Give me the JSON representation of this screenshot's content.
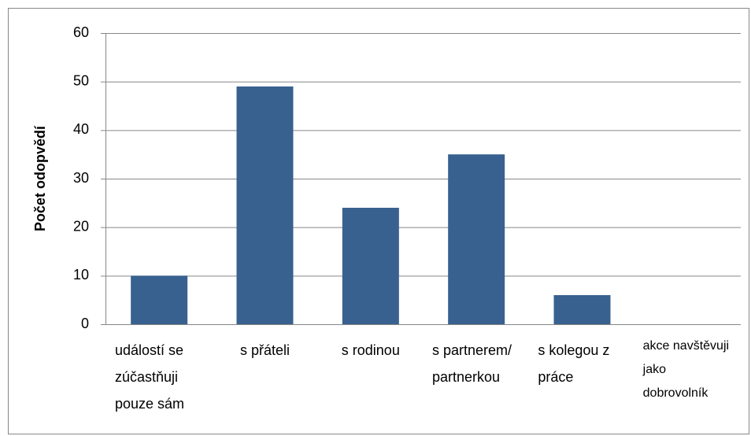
{
  "chart_data": {
    "type": "bar",
    "ylabel": "Počet odopvědí",
    "categories": [
      "událostí se zúčastňuji pouze sám",
      "s přáteli",
      "s rodinou",
      "s partnerem/ partnerkou",
      "s kolegou z práce",
      "akce navštěvuji jako dobrovolník"
    ],
    "values": [
      10,
      49,
      24,
      35,
      6,
      0
    ],
    "color": "#38618f",
    "ylim": [
      0,
      60
    ],
    "yticks": [
      0,
      10,
      20,
      30,
      40,
      50,
      60
    ],
    "grid": true
  }
}
